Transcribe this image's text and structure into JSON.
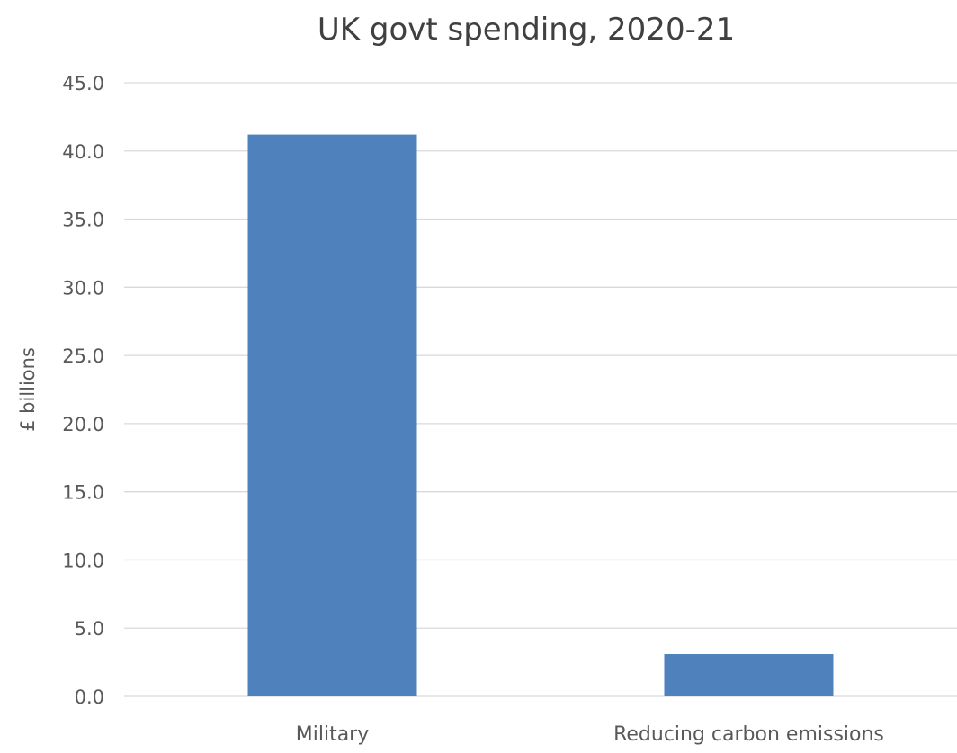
{
  "chart_data": {
    "type": "bar",
    "title": "UK govt spending, 2020-21",
    "xlabel": "",
    "ylabel": "£ billions",
    "categories": [
      "Military",
      "Reducing carbon emissions"
    ],
    "series": [
      {
        "values": [
          41.2,
          3.1
        ]
      }
    ],
    "ylim": [
      0,
      45
    ],
    "yticks": [
      "0.0",
      "5.0",
      "10.0",
      "15.0",
      "20.0",
      "25.0",
      "30.0",
      "35.0",
      "40.0",
      "45.0"
    ],
    "grid": true,
    "legend": "none",
    "colors": {
      "bar": "#4f81bd",
      "grid": "#d9d9d9",
      "text": "#595959",
      "title": "#404040"
    }
  }
}
